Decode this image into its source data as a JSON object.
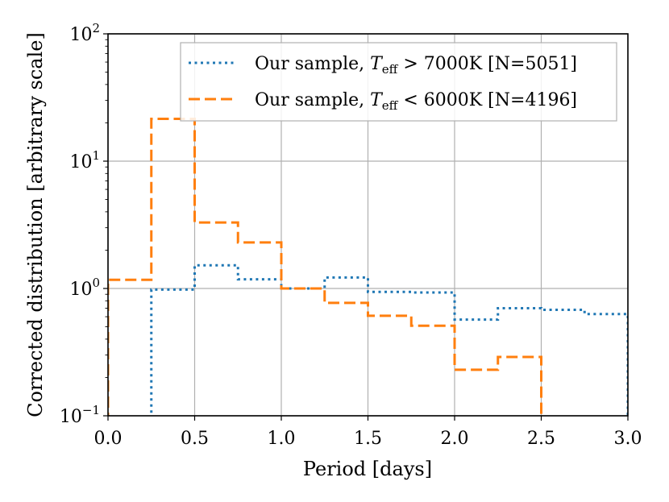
{
  "chart_data": {
    "type": "step",
    "xlabel": "Period [days]",
    "ylabel": "Corrected distribution [arbitrary scale]",
    "xlim": [
      0.0,
      3.0
    ],
    "ylim": [
      0.1,
      100
    ],
    "yscale": "log",
    "grid": true,
    "legend_position": "top-right",
    "xticks": [
      {
        "value": 0.0,
        "label": "0.0"
      },
      {
        "value": 0.5,
        "label": "0.5"
      },
      {
        "value": 1.0,
        "label": "1.0"
      },
      {
        "value": 1.5,
        "label": "1.5"
      },
      {
        "value": 2.0,
        "label": "2.0"
      },
      {
        "value": 2.5,
        "label": "2.5"
      },
      {
        "value": 3.0,
        "label": "3.0"
      }
    ],
    "yticks": [
      {
        "value": 0.1,
        "base": "10",
        "exp": "−1"
      },
      {
        "value": 1,
        "base": "10",
        "exp": "0"
      },
      {
        "value": 10,
        "base": "10",
        "exp": "1"
      },
      {
        "value": 100,
        "base": "10",
        "exp": "2"
      }
    ],
    "bin_edges": [
      0.0,
      0.25,
      0.5,
      0.75,
      1.0,
      1.25,
      1.5,
      1.75,
      2.0,
      2.25,
      2.5,
      2.75,
      3.0
    ],
    "series": [
      {
        "name": "Our sample, T_eff > 7000K [N=5051]",
        "legend_prefix": "Our sample, ",
        "legend_symbol": "T",
        "legend_subscript": "eff",
        "legend_suffix": " > 7000K [N=5051]",
        "color": "#1f77b4",
        "style": "dotted",
        "values": [
          0,
          0.98,
          1.52,
          1.18,
          1.0,
          1.22,
          0.94,
          0.93,
          0.57,
          0.7,
          0.68,
          0.63
        ]
      },
      {
        "name": "Our sample, T_eff < 6000K [N=4196]",
        "legend_prefix": "Our sample, ",
        "legend_symbol": "T",
        "legend_subscript": "eff",
        "legend_suffix": " < 6000K [N=4196]",
        "color": "#ff7f0e",
        "style": "dashed",
        "values": [
          1.17,
          21.5,
          3.3,
          2.3,
          1.0,
          0.77,
          0.61,
          0.51,
          0.23,
          0.29,
          0,
          0
        ]
      }
    ]
  }
}
